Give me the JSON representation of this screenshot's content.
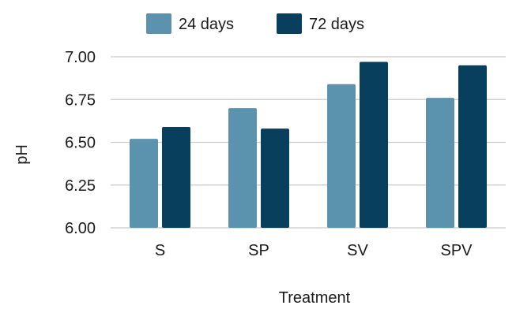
{
  "chart_data": {
    "type": "bar",
    "categories": [
      "S",
      "SP",
      "SV",
      "SPV"
    ],
    "series": [
      {
        "name": "24 days",
        "values": [
          6.52,
          6.7,
          6.84,
          6.76
        ],
        "color": "#5b92ae"
      },
      {
        "name": "72 days",
        "values": [
          6.59,
          6.58,
          6.97,
          6.95
        ],
        "color": "#083f5d"
      }
    ],
    "xlabel": "Treatment",
    "ylabel": "pH",
    "ylim": [
      6.0,
      7.0
    ],
    "yticks": [
      "6.00",
      "6.25",
      "6.50",
      "6.75",
      "7.00"
    ],
    "grid": true,
    "legend_position": "top-center"
  },
  "colors": {
    "grid": "#c8c8c8",
    "text": "#1a1a1a"
  }
}
